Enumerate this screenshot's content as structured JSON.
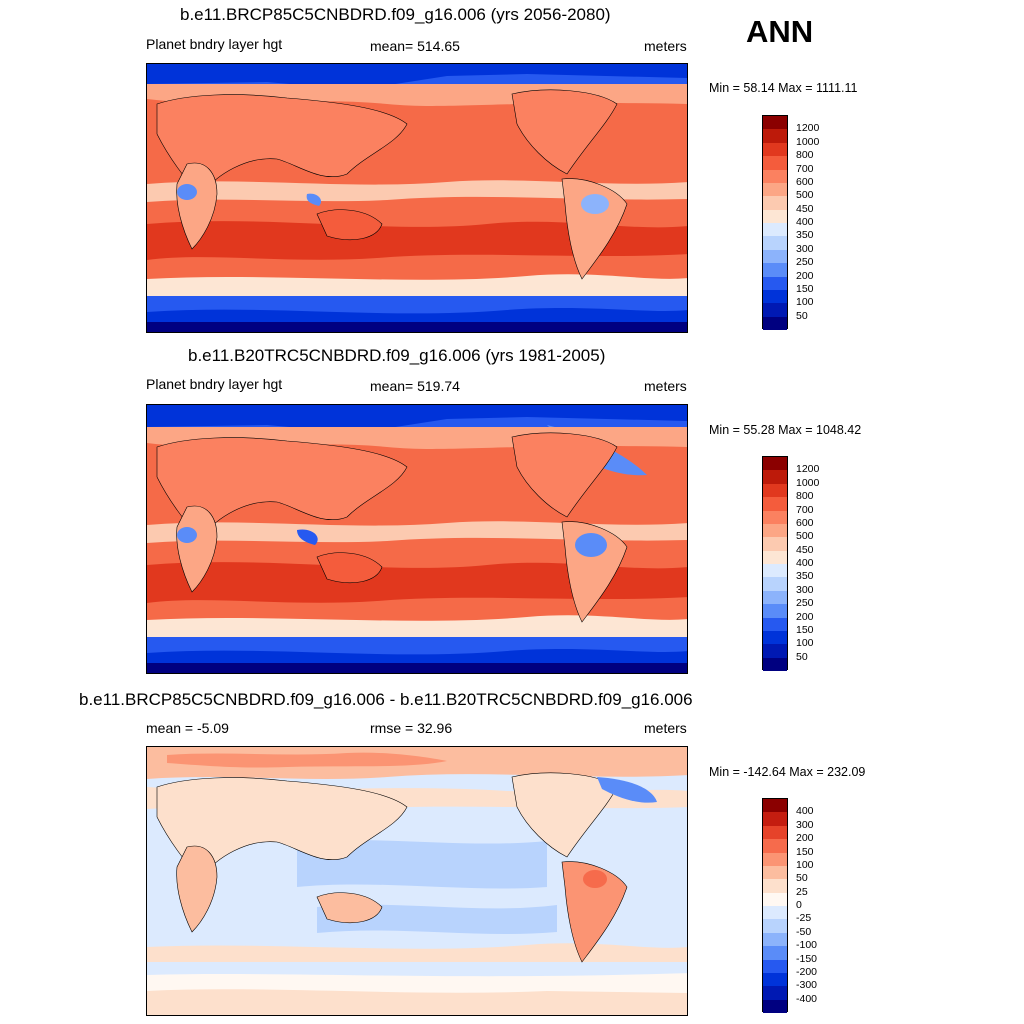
{
  "season": "ANN",
  "colors": {
    "top_bar": [
      "#000080",
      "#0019b3",
      "#0033d9",
      "#2659f0",
      "#5a8cf8",
      "#8cb3fb",
      "#b8d3fd",
      "#dceafe",
      "#fde6d4",
      "#fccab0",
      "#fca685",
      "#fb8160",
      "#f45c3c",
      "#e1381e",
      "#bd1a0a",
      "#8b0000"
    ],
    "diff_bar": [
      "#000080",
      "#0019b3",
      "#0033d9",
      "#2659f0",
      "#5a8cf8",
      "#8cb3fb",
      "#b8d3fd",
      "#dceafe",
      "#fff8f2",
      "#fde0cc",
      "#fcbd9f",
      "#fb9473",
      "#f66b4c",
      "#e6432a",
      "#c41d10",
      "#8b0000"
    ]
  },
  "panels": [
    {
      "title": "b.e11.BRCP85C5CNBDRD.f09_g16.006 (yrs 2056-2080)",
      "left_label": "Planet bndry layer hgt",
      "center_label": "mean= 514.65",
      "units": "meters",
      "minmax": "Min =  58.14 Max = 1111.11",
      "colorbar_labels": [
        "1200",
        "1000",
        "800",
        "700",
        "600",
        "500",
        "450",
        "400",
        "350",
        "300",
        "250",
        "200",
        "150",
        "100",
        "50"
      ]
    },
    {
      "title": "b.e11.B20TRC5CNBDRD.f09_g16.006 (yrs 1981-2005)",
      "left_label": "Planet bndry layer hgt",
      "center_label": "mean= 519.74",
      "units": "meters",
      "minmax": "Min =  55.28 Max = 1048.42",
      "colorbar_labels": [
        "1200",
        "1000",
        "800",
        "700",
        "600",
        "500",
        "450",
        "400",
        "350",
        "300",
        "250",
        "200",
        "150",
        "100",
        "50"
      ]
    },
    {
      "title": "b.e11.BRCP85C5CNBDRD.f09_g16.006 - b.e11.B20TRC5CNBDRD.f09_g16.006",
      "left_label": "mean =  -5.09",
      "center_label": "rmse =  32.96",
      "units": "meters",
      "minmax": "Min = -142.64 Max = 232.09",
      "colorbar_labels": [
        "400",
        "300",
        "200",
        "150",
        "100",
        "50",
        "25",
        "0",
        "-25",
        "-50",
        "-100",
        "-150",
        "-200",
        "-300",
        "-400"
      ]
    }
  ]
}
